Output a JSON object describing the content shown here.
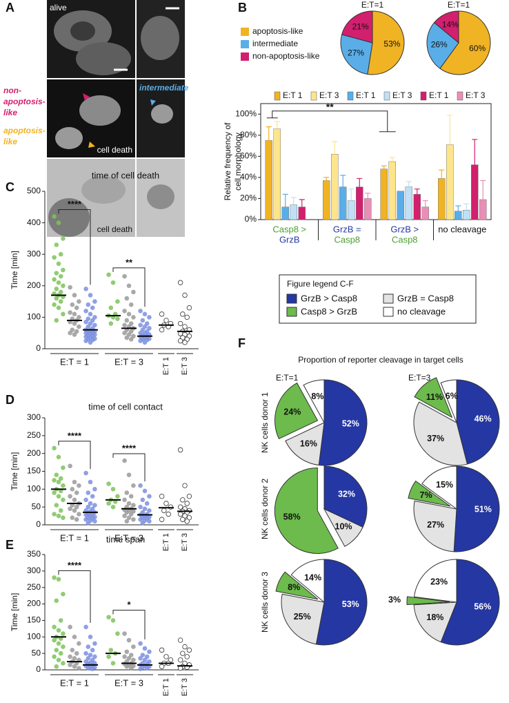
{
  "panel_labels": [
    "A",
    "B",
    "C",
    "D",
    "E",
    "F"
  ],
  "panel_a": {
    "alive": "alive",
    "intermediate": "intermediate",
    "non_apoptosis": [
      "non-",
      "apoptosis-",
      "like"
    ],
    "apoptosis": [
      "apoptosis-",
      "like"
    ],
    "cell_death": [
      "cell death",
      "cell death"
    ]
  },
  "chart_data": [
    {
      "type": "pie",
      "categories": [
        "apoptosis-like",
        "intermediate",
        "non-apoptosis-like"
      ],
      "colors": [
        "#f0b323",
        "#5aaee8",
        "#d21f6e"
      ],
      "pies": [
        {
          "title": "E:T=1",
          "values": [
            53,
            27,
            21
          ],
          "value_labels": [
            "53%",
            "27%",
            "21%"
          ]
        },
        {
          "title": "E:T=1",
          "values": [
            60,
            26,
            14
          ],
          "value_labels": [
            "60%",
            "26%",
            "14%"
          ]
        }
      ]
    },
    {
      "type": "bar",
      "ylabel": [
        "Relative frequency of",
        "cell morphology"
      ],
      "categories": [
        [
          "Casp8 >",
          "GrzB"
        ],
        [
          "GrzB =",
          "Casp8"
        ],
        [
          "GrzB >",
          "Casp8"
        ],
        [
          "no cleavage"
        ]
      ],
      "ylim": [
        0,
        110
      ],
      "yticks": [
        {
          "value": 0,
          "label": "0%"
        },
        {
          "value": 20,
          "label": "20%"
        },
        {
          "value": 40,
          "label": "40%"
        },
        {
          "value": 60,
          "label": "60%"
        },
        {
          "value": 80,
          "label": "80%"
        },
        {
          "value": 100,
          "label": "100%"
        }
      ],
      "significance": "**",
      "series": [
        {
          "name": "E:T 1",
          "color": "#f0b323",
          "values": [
            75,
            37,
            48,
            39
          ],
          "errors": [
            13,
            3,
            3,
            8
          ]
        },
        {
          "name": "E:T 3",
          "color": "#fde58c",
          "values": [
            86,
            62,
            55,
            71
          ],
          "errors": [
            7,
            12,
            4,
            28
          ]
        },
        {
          "name": "E:T 1",
          "color": "#5aaee8",
          "values": [
            12,
            31,
            27,
            8
          ],
          "errors": [
            12,
            11,
            null,
            5
          ]
        },
        {
          "name": "E:T 3",
          "color": "#bfe0f7",
          "values": [
            14,
            18,
            31,
            9
          ],
          "errors": [
            7,
            11,
            5,
            6
          ]
        },
        {
          "name": "E:T 1",
          "color": "#d21f6e",
          "values": [
            12,
            31,
            24,
            52
          ],
          "errors": [
            7,
            8,
            5,
            24
          ]
        },
        {
          "name": "E:T 3",
          "color": "#e88fb5",
          "values": [
            null,
            20,
            12,
            19
          ],
          "errors": [
            null,
            5,
            6,
            18
          ]
        }
      ]
    },
    {
      "type": "strip",
      "title": "time of cell death",
      "ylabel": "Time [min]",
      "ylim": [
        0,
        500
      ],
      "yticks": [
        0,
        100,
        200,
        300,
        400,
        500
      ],
      "significance": [
        "****",
        "**"
      ],
      "groups": [
        {
          "label": "E:T = 1",
          "series": [
            {
              "color": "#7dc35a",
              "median": 170,
              "values": [
                420,
                400,
                350,
                330,
                300,
                290,
                270,
                250,
                240,
                230,
                220,
                210,
                200,
                190,
                180,
                175,
                170,
                165,
                160,
                150,
                140,
                130,
                110,
                90
              ]
            },
            {
              "color": "#9a9a9a",
              "median": 90,
              "values": [
                195,
                170,
                150,
                140,
                130,
                115,
                110,
                100,
                95,
                90,
                85,
                80,
                70,
                60,
                55,
                50,
                45
              ]
            },
            {
              "color": "#7b8fe0",
              "median": 60,
              "values": [
                190,
                170,
                150,
                140,
                130,
                120,
                110,
                100,
                95,
                90,
                85,
                80,
                75,
                70,
                65,
                60,
                58,
                56,
                55,
                52,
                50,
                48,
                45,
                42,
                40,
                38,
                35,
                32,
                30,
                28,
                25,
                20
              ]
            }
          ]
        },
        {
          "label": "E:T = 3",
          "series": [
            {
              "color": "#7dc35a",
              "median": 105,
              "values": [
                235,
                210,
                150,
                130,
                110,
                105,
                100,
                95,
                80
              ]
            },
            {
              "color": "#9a9a9a",
              "median": 65,
              "values": [
                230,
                200,
                180,
                160,
                140,
                120,
                110,
                100,
                90,
                80,
                75,
                70,
                65,
                60,
                55,
                50,
                45,
                40,
                35,
                30
              ]
            },
            {
              "color": "#7b8fe0",
              "median": 40,
              "values": [
                120,
                110,
                100,
                90,
                80,
                75,
                70,
                65,
                60,
                55,
                50,
                48,
                45,
                42,
                40,
                38,
                35,
                32,
                30,
                28,
                25,
                20
              ]
            }
          ]
        },
        {
          "label": "E:T 1",
          "series": [
            {
              "color": "none",
              "median": 75,
              "values": [
                110,
                90,
                80,
                75,
                70,
                60
              ]
            }
          ]
        },
        {
          "label": "E:T 3",
          "series": [
            {
              "color": "none",
              "median": 55,
              "values": [
                210,
                170,
                130,
                110,
                100,
                80,
                70,
                60,
                55,
                50,
                48,
                45,
                40,
                35,
                30,
                25,
                20
              ]
            }
          ]
        }
      ]
    },
    {
      "type": "strip",
      "title": "time of cell contact",
      "ylabel": "Time [min]",
      "ylim": [
        0,
        300
      ],
      "yticks": [
        0,
        50,
        100,
        150,
        200,
        250,
        300
      ],
      "significance": [
        "****",
        "****"
      ],
      "groups": [
        {
          "label": "E:T = 1",
          "series": [
            {
              "color": "#7dc35a",
              "median": 100,
              "values": [
                215,
                190,
                160,
                140,
                130,
                125,
                120,
                110,
                100,
                95,
                90,
                80,
                70,
                55,
                40,
                30,
                25,
                20
              ]
            },
            {
              "color": "#9a9a9a",
              "median": 60,
              "values": [
                165,
                120,
                110,
                100,
                90,
                80,
                70,
                60,
                55,
                50,
                45,
                40,
                30,
                20,
                15
              ]
            },
            {
              "color": "#7b8fe0",
              "median": 35,
              "values": [
                145,
                120,
                100,
                90,
                80,
                70,
                60,
                55,
                50,
                45,
                40,
                38,
                35,
                32,
                30,
                28,
                25,
                22,
                20,
                18,
                15,
                12,
                10,
                5
              ]
            }
          ]
        },
        {
          "label": "E:T = 3",
          "series": [
            {
              "color": "#7dc35a",
              "median": 70,
              "values": [
                115,
                100,
                80,
                70,
                65,
                60,
                50
              ]
            },
            {
              "color": "#9a9a9a",
              "median": 45,
              "values": [
                180,
                140,
                110,
                90,
                80,
                70,
                60,
                55,
                50,
                45,
                42,
                40,
                38,
                35,
                30,
                25,
                20,
                15,
                10
              ]
            },
            {
              "color": "#7b8fe0",
              "median": 28,
              "values": [
                110,
                95,
                80,
                70,
                60,
                50,
                45,
                40,
                35,
                30,
                28,
                25,
                22,
                20,
                18,
                15,
                12,
                10,
                5
              ]
            }
          ]
        },
        {
          "label": "E:T 1",
          "series": [
            {
              "color": "none",
              "median": 48,
              "values": [
                80,
                60,
                50,
                40,
                30,
                15
              ]
            }
          ]
        },
        {
          "label": "E:T 3",
          "series": [
            {
              "color": "none",
              "median": 38,
              "values": [
                210,
                110,
                80,
                70,
                60,
                50,
                45,
                40,
                38,
                35,
                30,
                25,
                20,
                15,
                10
              ]
            }
          ]
        }
      ]
    },
    {
      "type": "strip",
      "title": "time span",
      "ylabel": "Time [min]",
      "ylim": [
        0,
        350
      ],
      "yticks": [
        0,
        50,
        100,
        150,
        200,
        250,
        300,
        350
      ],
      "significance": [
        "****",
        "*"
      ],
      "groups": [
        {
          "label": "E:T = 1",
          "series": [
            {
              "color": "#7dc35a",
              "median": 100,
              "values": [
                280,
                275,
                230,
                210,
                150,
                130,
                120,
                110,
                100,
                95,
                90,
                80,
                70,
                60,
                50,
                40,
                30,
                20,
                10
              ]
            },
            {
              "color": "#9a9a9a",
              "median": 25,
              "values": [
                130,
                100,
                80,
                60,
                50,
                40,
                35,
                30,
                25,
                20,
                15,
                10,
                5
              ]
            },
            {
              "color": "#7b8fe0",
              "median": 15,
              "values": [
                130,
                100,
                80,
                70,
                60,
                50,
                45,
                40,
                35,
                30,
                25,
                22,
                20,
                18,
                15,
                12,
                10,
                8,
                5,
                3
              ]
            }
          ]
        },
        {
          "label": "E:T = 3",
          "series": [
            {
              "color": "#7dc35a",
              "median": 50,
              "values": [
                160,
                150,
                110,
                60,
                50,
                40,
                20
              ]
            },
            {
              "color": "#9a9a9a",
              "median": 20,
              "values": [
                110,
                90,
                70,
                55,
                45,
                40,
                35,
                30,
                25,
                20,
                18,
                15,
                12,
                10,
                5
              ]
            },
            {
              "color": "#7b8fe0",
              "median": 15,
              "values": [
                80,
                65,
                55,
                45,
                40,
                35,
                30,
                25,
                20,
                18,
                15,
                12,
                10,
                8,
                5,
                3
              ]
            }
          ]
        },
        {
          "label": "E:T 1",
          "series": [
            {
              "color": "none",
              "median": 20,
              "values": [
                60,
                40,
                30,
                20,
                20,
                10
              ]
            }
          ]
        },
        {
          "label": "E:T 3",
          "series": [
            {
              "color": "none",
              "median": 12,
              "values": [
                90,
                70,
                60,
                50,
                40,
                30,
                20,
                15,
                10,
                8,
                5
              ]
            }
          ]
        }
      ]
    },
    {
      "type": "pie",
      "title": "Proportion of reporter cleavage in target cells",
      "legend_title": "Figure legend C-F",
      "column_titles": [
        "E:T=1",
        "E:T=3"
      ],
      "row_titles": [
        "NK cells donor 1",
        "NK cells donor 2",
        "NK cells donor 3"
      ],
      "categories": [
        "GrzB > Casp8",
        "GrzB = Casp8",
        "Casp8 > GrzB",
        "no cleavage"
      ],
      "colors": [
        "#2537a3",
        "#e3e3e3",
        "#6cbb4c",
        "#ffffff"
      ],
      "explode": [
        false,
        false,
        true,
        false
      ],
      "pies": [
        {
          "values": [
            52,
            16,
            24,
            8
          ],
          "value_labels": [
            "52%",
            "16%",
            "24%",
            "8%"
          ]
        },
        {
          "values": [
            46,
            37,
            11,
            6
          ],
          "value_labels": [
            "46%",
            "37%",
            "11%",
            "6%"
          ]
        },
        {
          "values": [
            32,
            10,
            58,
            null
          ],
          "value_labels": [
            "32%",
            "10%",
            "58%",
            null
          ]
        },
        {
          "values": [
            51,
            27,
            7,
            15
          ],
          "value_labels": [
            "51%",
            "27%",
            "7%",
            "15%"
          ]
        },
        {
          "values": [
            53,
            25,
            8,
            14
          ],
          "value_labels": [
            "53%",
            "25%",
            "8%",
            "14%"
          ]
        },
        {
          "values": [
            56,
            18,
            3,
            23
          ],
          "value_labels": [
            "56%",
            "18%",
            "3%",
            "23%"
          ]
        }
      ]
    }
  ]
}
